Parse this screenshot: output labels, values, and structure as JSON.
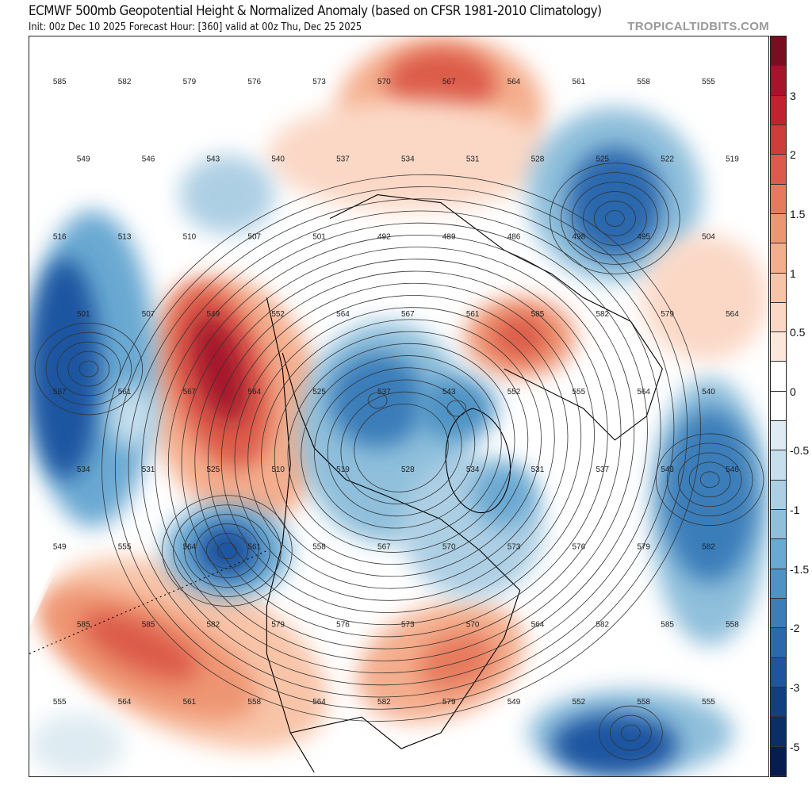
{
  "header": {
    "title": "ECMWF 500mb Geopotential Height & Normalized Anomaly (based on CFSR 1981-2010 Climatology)",
    "subtitle": "Init: 00z Dec 10 2025   Forecast Hour: [360]   valid at 00z Thu, Dec 25 2025",
    "brand": "TROPICALTIDBITS.COM"
  },
  "colorbar": {
    "tick_labels": [
      "3",
      "2",
      "1.5",
      "1",
      "0.5",
      "0",
      "-0.5",
      "-1",
      "-1.5",
      "-2",
      "-3",
      "-5"
    ],
    "colors": [
      "#7a0d1f",
      "#a5142a",
      "#c0232f",
      "#cf3d3a",
      "#dc5b4a",
      "#e67a5d",
      "#ee9572",
      "#f4ae8d",
      "#f8c4a8",
      "#fbd8c6",
      "#fde7dc",
      "#ffffff",
      "#ffffff",
      "#deebf2",
      "#c7dfed",
      "#adcfe4",
      "#8fbfdb",
      "#6aa9d2",
      "#4d93c5",
      "#3a7db9",
      "#2b68ad",
      "#1e54a0",
      "#123f82",
      "#0a2e65",
      "#081d4f"
    ]
  },
  "contour_labels": [
    "585",
    "582",
    "579",
    "576",
    "573",
    "570",
    "567",
    "564",
    "561",
    "558",
    "555",
    "549",
    "546",
    "543",
    "540",
    "537",
    "534",
    "531",
    "528",
    "525",
    "522",
    "519",
    "516",
    "513",
    "510",
    "507",
    "501",
    "492",
    "489",
    "486",
    "498",
    "495",
    "504",
    "501",
    "507",
    "549",
    "552",
    "564",
    "567",
    "561",
    "585",
    "582",
    "579",
    "564",
    "567",
    "561",
    "567",
    "564",
    "525",
    "537",
    "543",
    "552",
    "555",
    "564",
    "540",
    "534",
    "531",
    "525",
    "510",
    "519",
    "528",
    "534",
    "531",
    "537",
    "543",
    "546",
    "549",
    "555",
    "564",
    "561",
    "558",
    "567",
    "570",
    "573",
    "576",
    "579",
    "582",
    "585",
    "585",
    "582",
    "579",
    "576",
    "573",
    "570",
    "564",
    "582",
    "585",
    "558",
    "555",
    "564",
    "561",
    "558",
    "564",
    "582",
    "579",
    "549",
    "552",
    "558",
    "555"
  ]
}
